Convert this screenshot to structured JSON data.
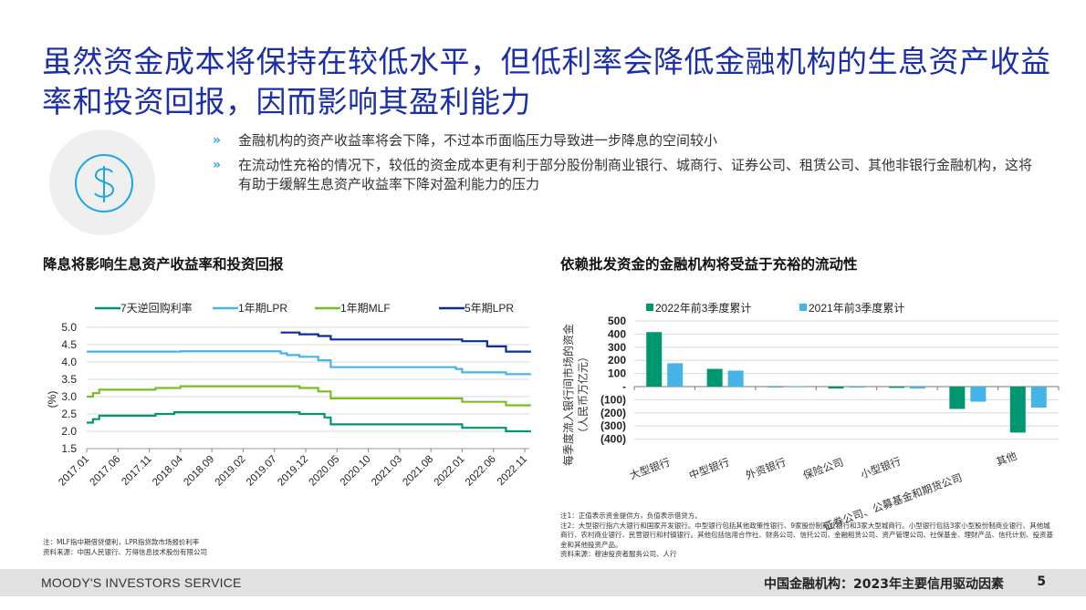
{
  "slide": {
    "title": "虽然资金成本将保持在较低水平，但低利率会降低金融机构的生息资产收益率和投资回报，因而影响其盈利能力",
    "icon": "dollar-circle-icon",
    "bullets": [
      {
        "marker": "»",
        "text": "金融机构的资产收益率将会下降，不过本币面临压力导致进一步降息的空间较小"
      },
      {
        "marker": "»",
        "text": "在流动性充裕的情况下，较低的资金成本更有利于部分股份制商业银行、城商行、证券公司、租赁公司、其他非银行金融机构，这将有助于缓解生息资产收益率下降对盈利能力的压力"
      }
    ]
  },
  "left_chart": {
    "title": "降息将影响生息资产收益率和投资回报",
    "note": "注：MLF指中期借贷便利，LPR指贷款市场报价利率",
    "source": "资料来源：中国人民银行、万得信息技术股份有限公司"
  },
  "right_chart": {
    "title": "依赖批发资金的金融机构将受益于充裕的流动性",
    "notes": [
      "注1：正值表示资金提供方，负值表示借贷方。",
      "注2：大型银行指六大银行和国家开发银行。中型银行包括其他政策性银行、9家股份制商业银行和3家大型城商行。小型银行包括3家小型股份制商业银行、其他城商行、农村商业银行、民营银行和村镇银行。其他包括信用合作社、财务公司、信托公司、金融租赁公司、资产管理公司、社保基金、理财产品、信托计划、投资基金和其他投资产品。",
      "资料来源：穆迪投资者服务公司、人行"
    ]
  },
  "footer": {
    "brand": "MOODY'S INVESTORS SERVICE",
    "doc_title": "中国金融机构：2023年主要信用驱动因素",
    "page_number": "5"
  },
  "chart_data": [
    {
      "type": "line",
      "title": "降息将影响生息资产收益率和投资回报",
      "xlabel": "",
      "ylabel": "(%)",
      "ylim": [
        1.5,
        5.0
      ],
      "yticks": [
        "5.0",
        "4.5",
        "4.0",
        "3.5",
        "3.0",
        "2.5",
        "2.0",
        "1.5"
      ],
      "xticks": [
        "2017.01",
        "2017.06",
        "2017.11",
        "2018.04",
        "2018.09",
        "2019.02",
        "2019.07",
        "2019.12",
        "2020.05",
        "2020.10",
        "2021.03",
        "2021.08",
        "2022.01",
        "2022.06",
        "2022.11"
      ],
      "grid": true,
      "legend_position": "top",
      "series": [
        {
          "name": "7天逆回购利率",
          "color": "#009670",
          "steps": [
            [
              "2017.01",
              2.25
            ],
            [
              "2017.02",
              2.35
            ],
            [
              "2017.03",
              2.45
            ],
            [
              "2017.12",
              2.5
            ],
            [
              "2018.03",
              2.55
            ],
            [
              "2019.11",
              2.5
            ],
            [
              "2020.03",
              2.4
            ],
            [
              "2020.04",
              2.2
            ],
            [
              "2022.01",
              2.1
            ],
            [
              "2022.08",
              2.0
            ],
            [
              "2022.12",
              2.0
            ]
          ]
        },
        {
          "name": "1年期LPR",
          "color": "#46b4e6",
          "steps": [
            [
              "2017.01",
              4.3
            ],
            [
              "2018.04",
              4.31
            ],
            [
              "2019.08",
              4.25
            ],
            [
              "2019.09",
              4.2
            ],
            [
              "2019.11",
              4.15
            ],
            [
              "2020.02",
              4.05
            ],
            [
              "2020.04",
              3.85
            ],
            [
              "2021.12",
              3.8
            ],
            [
              "2022.01",
              3.7
            ],
            [
              "2022.08",
              3.65
            ],
            [
              "2022.12",
              3.65
            ]
          ]
        },
        {
          "name": "1年期MLF",
          "color": "#78be20",
          "steps": [
            [
              "2017.01",
              3.0
            ],
            [
              "2017.02",
              3.1
            ],
            [
              "2017.03",
              3.2
            ],
            [
              "2017.12",
              3.25
            ],
            [
              "2018.04",
              3.3
            ],
            [
              "2019.11",
              3.25
            ],
            [
              "2020.02",
              3.15
            ],
            [
              "2020.04",
              2.95
            ],
            [
              "2022.01",
              2.85
            ],
            [
              "2022.08",
              2.75
            ],
            [
              "2022.12",
              2.75
            ]
          ]
        },
        {
          "name": "5年期LPR",
          "color": "#0a2d9c",
          "steps": [
            [
              "2019.08",
              4.85
            ],
            [
              "2019.11",
              4.8
            ],
            [
              "2020.02",
              4.75
            ],
            [
              "2020.04",
              4.65
            ],
            [
              "2022.01",
              4.6
            ],
            [
              "2022.05",
              4.45
            ],
            [
              "2022.08",
              4.3
            ],
            [
              "2022.12",
              4.3
            ]
          ]
        }
      ]
    },
    {
      "type": "bar",
      "title": "依赖批发资金的金融机构将受益于充裕的流动性",
      "xlabel": "",
      "ylabel": "每季度流入银行间市场的资金（人民币万亿元）",
      "ylim": [
        -400,
        500
      ],
      "yticks": [
        "500",
        "400",
        "300",
        "200",
        "100",
        "-",
        "(100)",
        "(200)",
        "(300)",
        "(400)"
      ],
      "grid": true,
      "legend_position": "top",
      "categories": [
        "大型银行",
        "中型银行",
        "外资银行",
        "保险公司",
        "小型银行",
        "证券公司、公募基金和期货公司",
        "其他"
      ],
      "series": [
        {
          "name": "2022年前3季度累计",
          "color": "#009670",
          "values": [
            415,
            135,
            2,
            -15,
            -10,
            -170,
            -350
          ]
        },
        {
          "name": "2021年前3季度累计",
          "color": "#46b4e6",
          "values": [
            178,
            122,
            2,
            -8,
            -15,
            -115,
            -160
          ]
        }
      ]
    }
  ]
}
